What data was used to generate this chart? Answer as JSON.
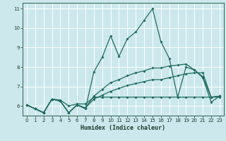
{
  "xlabel": "Humidex (Indice chaleur)",
  "bg_color": "#cce8ec",
  "grid_color": "#ffffff",
  "line_color": "#1e6b5e",
  "xlim": [
    -0.5,
    23.5
  ],
  "ylim": [
    5.5,
    11.3
  ],
  "yticks": [
    6,
    7,
    8,
    9,
    10,
    11
  ],
  "xticks": [
    0,
    1,
    2,
    3,
    4,
    5,
    6,
    7,
    8,
    9,
    10,
    11,
    12,
    13,
    14,
    15,
    16,
    17,
    18,
    19,
    20,
    21,
    22,
    23
  ],
  "s1_x": [
    0,
    1,
    2,
    3,
    4,
    5,
    6,
    7,
    8,
    9,
    10,
    11,
    12,
    13,
    14,
    15,
    16,
    17,
    18,
    19,
    20,
    21,
    22,
    23
  ],
  "s1_y": [
    6.05,
    5.85,
    5.65,
    6.35,
    6.25,
    5.65,
    6.05,
    5.85,
    7.75,
    8.5,
    9.6,
    8.55,
    9.45,
    9.8,
    10.4,
    11.0,
    9.3,
    8.45,
    6.45,
    8.0,
    7.85,
    7.45,
    6.2,
    6.5
  ],
  "s2_x": [
    0,
    1,
    2,
    3,
    4,
    5,
    6,
    7,
    8,
    9,
    10,
    11,
    12,
    13,
    14,
    15,
    16,
    17,
    18,
    19,
    20,
    21,
    22,
    23
  ],
  "s2_y": [
    6.05,
    5.85,
    5.65,
    6.35,
    6.3,
    6.0,
    6.1,
    6.1,
    6.45,
    6.45,
    6.45,
    6.45,
    6.45,
    6.45,
    6.45,
    6.45,
    6.45,
    6.45,
    6.45,
    6.45,
    6.45,
    6.45,
    6.45,
    6.45
  ],
  "s3_x": [
    0,
    1,
    2,
    3,
    4,
    5,
    6,
    7,
    8,
    9,
    10,
    11,
    12,
    13,
    14,
    15,
    16,
    17,
    18,
    19,
    20,
    21,
    22,
    23
  ],
  "s3_y": [
    6.05,
    5.85,
    5.65,
    6.35,
    6.25,
    5.65,
    6.05,
    5.9,
    6.35,
    6.55,
    6.75,
    6.9,
    7.05,
    7.15,
    7.25,
    7.35,
    7.35,
    7.45,
    7.55,
    7.65,
    7.7,
    7.7,
    6.45,
    6.5
  ],
  "s4_x": [
    0,
    1,
    2,
    3,
    4,
    5,
    6,
    7,
    8,
    9,
    10,
    11,
    12,
    13,
    14,
    15,
    16,
    17,
    18,
    19,
    20,
    21,
    22,
    23
  ],
  "s4_y": [
    6.05,
    5.85,
    5.65,
    6.35,
    6.25,
    5.65,
    6.05,
    5.9,
    6.5,
    6.85,
    7.2,
    7.35,
    7.55,
    7.7,
    7.8,
    7.95,
    7.95,
    8.05,
    8.1,
    8.15,
    7.85,
    7.5,
    6.45,
    6.5
  ]
}
